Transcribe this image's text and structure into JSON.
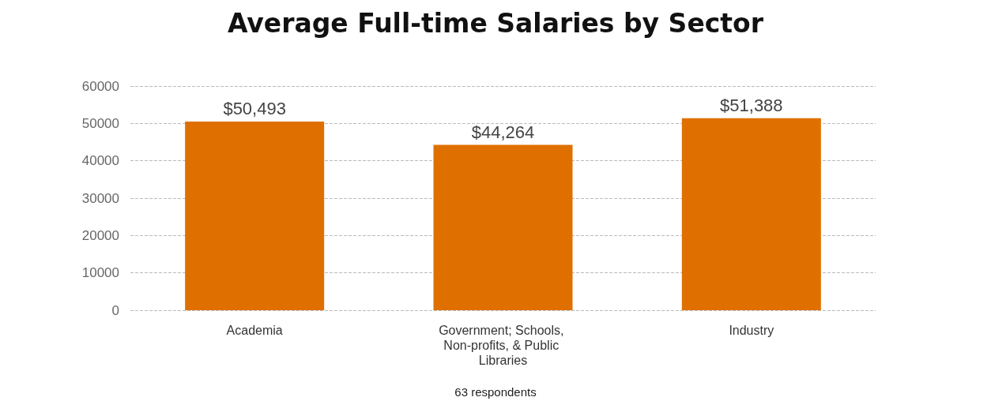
{
  "chart_data": {
    "type": "bar",
    "title": "Average Full-time Salaries by Sector",
    "categories": [
      "Academia",
      "Government; Schools, Non-profits, & Public Libraries",
      "Industry"
    ],
    "values": [
      50493,
      44264,
      51388
    ],
    "value_labels": [
      "$50,493",
      "$44,264",
      "$51,388"
    ],
    "color": "#df7000",
    "ylim": [
      0,
      60000
    ],
    "yticks": [
      0,
      10000,
      20000,
      30000,
      40000,
      50000,
      60000
    ],
    "grid": "y",
    "annotations": [
      "63 respondents"
    ]
  }
}
